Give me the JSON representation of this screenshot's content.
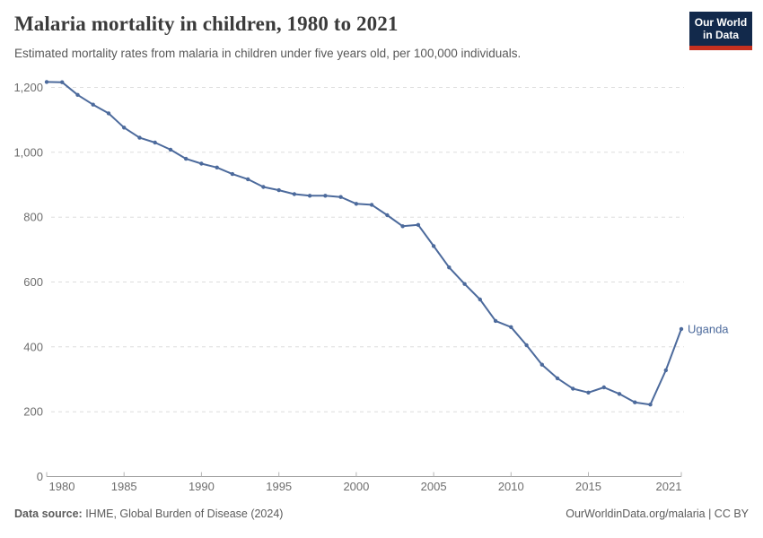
{
  "header": {
    "title": "Malaria mortality in children, 1980 to 2021",
    "subtitle": "Estimated mortality rates from malaria in children under five years old, per 100,000 individuals.",
    "logo": {
      "line1": "Our World",
      "line2": "in Data",
      "bg_color": "#12294b",
      "bar_color": "#c5301f"
    }
  },
  "chart_data": {
    "type": "line",
    "title": "Malaria mortality in children, 1980 to 2021",
    "xlabel": "",
    "ylabel": "",
    "x": [
      1980,
      1981,
      1982,
      1983,
      1984,
      1985,
      1986,
      1987,
      1988,
      1989,
      1990,
      1991,
      1992,
      1993,
      1994,
      1995,
      1996,
      1997,
      1998,
      1999,
      2000,
      2001,
      2002,
      2003,
      2004,
      2005,
      2006,
      2007,
      2008,
      2009,
      2010,
      2011,
      2012,
      2013,
      2014,
      2015,
      2016,
      2017,
      2018,
      2019,
      2020,
      2021
    ],
    "series": [
      {
        "name": "Uganda",
        "color": "#4c6a9c",
        "values": [
          1217,
          1216,
          1177,
          1147,
          1120,
          1076,
          1045,
          1030,
          1008,
          980,
          965,
          953,
          933,
          917,
          893,
          883,
          871,
          866,
          866,
          862,
          841,
          838,
          806,
          772,
          776,
          711,
          645,
          594,
          546,
          480,
          461,
          405,
          345,
          303,
          271,
          259,
          275,
          255,
          229,
          222,
          328,
          455
        ]
      }
    ],
    "x_ticks": [
      1980,
      1985,
      1990,
      1995,
      2000,
      2005,
      2010,
      2015,
      2021
    ],
    "y_ticks": [
      0,
      200,
      400,
      600,
      800,
      1000,
      1200
    ],
    "xlim": [
      1980,
      2021
    ],
    "ylim": [
      0,
      1245
    ],
    "grid": "horizontal-dashed",
    "legend_position": "end-of-line-label",
    "end_label": "Uganda",
    "colors": {
      "gridline": "#dedede",
      "axis_line": "#9e9e9e",
      "axis_tick": "#b5b5b5",
      "tick_label": "#6e6e6e",
      "series_label": "#4c6a9c"
    }
  },
  "footer": {
    "source_label": "Data source:",
    "source_text": " IHME, Global Burden of Disease (2024)",
    "credit": "OurWorldinData.org/malaria | CC BY"
  }
}
